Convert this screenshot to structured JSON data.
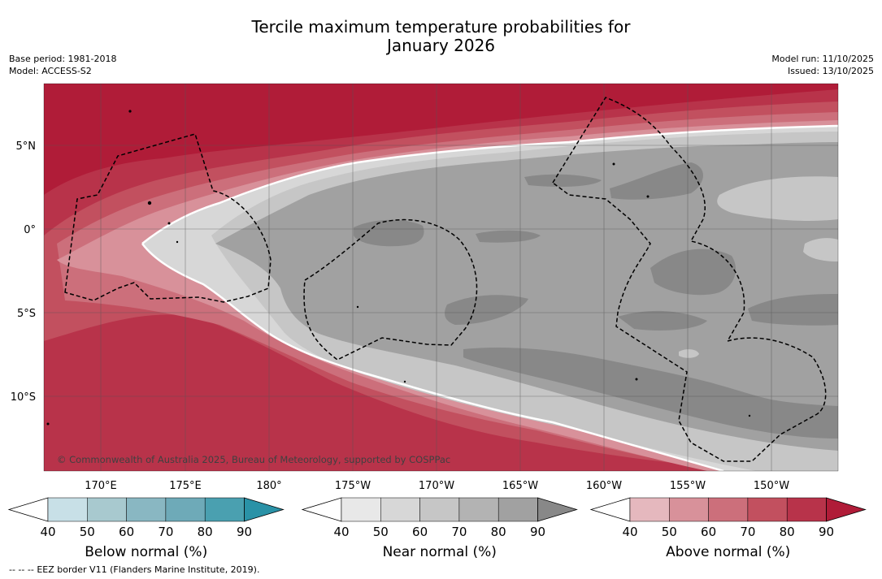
{
  "header": {
    "title_line1": "Tercile maximum temperature probabilities for",
    "title_line2": "January 2026",
    "base_period": "Base period: 1981-2018",
    "model": "Model: ACCESS-S2",
    "model_run": "Model run: 11/10/2025",
    "issued": "Issued: 13/10/2025"
  },
  "map": {
    "lat_labels": [
      "5°N",
      "0°",
      "5°S",
      "10°S"
    ],
    "lon_labels": [
      "170°E",
      "175°E",
      "180°",
      "175°W",
      "170°W",
      "165°W",
      "160°W",
      "155°W",
      "150°W"
    ],
    "copyright": "© Commonwealth of Australia 2025, Bureau of Meteorology, supported by COSPPac"
  },
  "colorbars": [
    {
      "name": "below",
      "label": "Below normal (%)",
      "ticks": [
        "40",
        "50",
        "60",
        "70",
        "80",
        "90"
      ],
      "colors": [
        "#c8e0e7",
        "#a8c9cf",
        "#89b7c2",
        "#6eaab8",
        "#4aa0b0",
        "#2a92a7"
      ]
    },
    {
      "name": "near",
      "label": "Near normal (%)",
      "ticks": [
        "40",
        "50",
        "60",
        "70",
        "80",
        "90"
      ],
      "colors": [
        "#e8e8e8",
        "#d7d7d7",
        "#c6c6c6",
        "#b3b3b3",
        "#a1a1a1",
        "#888888"
      ]
    },
    {
      "name": "above",
      "label": "Above normal (%)",
      "ticks": [
        "40",
        "50",
        "60",
        "70",
        "80",
        "90"
      ],
      "colors": [
        "#e5b8be",
        "#d8919a",
        "#cc6f7b",
        "#c2505f",
        "#b8334a",
        "#b01c38"
      ]
    }
  ],
  "footer": {
    "legend_dash": "-- -- --",
    "legend_text": "EEZ border V11 (Flanders Marine Institute, 2019)."
  }
}
